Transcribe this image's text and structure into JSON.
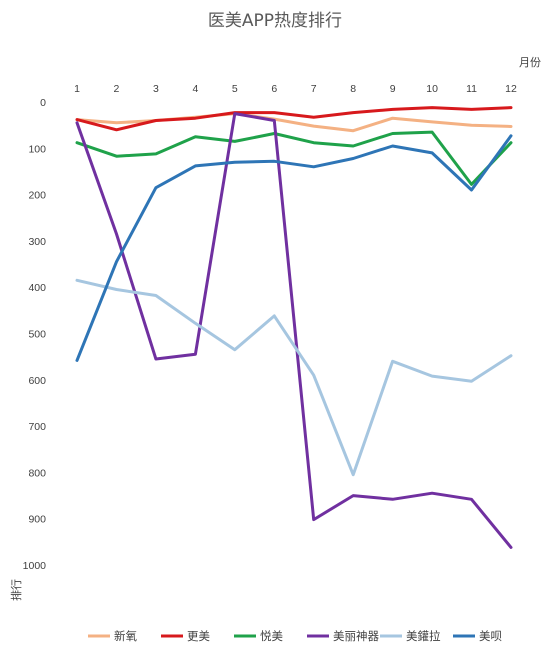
{
  "chart_data": {
    "type": "line",
    "title": "医美APP热度排行",
    "xlabel": "月份",
    "ylabel": "排行",
    "x": [
      1,
      2,
      3,
      4,
      5,
      6,
      7,
      8,
      9,
      10,
      11,
      12
    ],
    "x_axis_position": "top",
    "y_inverted": true,
    "ylim": [
      0,
      1000
    ],
    "yticks": [
      0,
      100,
      200,
      300,
      400,
      500,
      600,
      700,
      800,
      900,
      1000
    ],
    "grid": false,
    "legend_position": "bottom",
    "series": [
      {
        "name": "新氧",
        "color": "#F4B183",
        "values": [
          38,
          45,
          40,
          33,
          25,
          37,
          52,
          62,
          35,
          43,
          50,
          53
        ]
      },
      {
        "name": "更美",
        "color": "#D7191C",
        "values": [
          38,
          60,
          40,
          35,
          23,
          23,
          33,
          23,
          16,
          12,
          16,
          12
        ]
      },
      {
        "name": "悦美",
        "color": "#1FA24A",
        "values": [
          88,
          117,
          112,
          75,
          85,
          68,
          88,
          95,
          68,
          65,
          178,
          88
        ]
      },
      {
        "name": "美丽神器",
        "color": "#7030A0",
        "values": [
          45,
          285,
          555,
          545,
          25,
          40,
          902,
          850,
          858,
          845,
          858,
          962
        ]
      },
      {
        "name": "美鑵拉",
        "color": "#A6C6E0",
        "values": [
          385,
          405,
          418,
          478,
          535,
          462,
          590,
          805,
          560,
          592,
          603,
          548
        ]
      },
      {
        "name": "美呗",
        "color": "#2E75B6",
        "values": [
          558,
          345,
          185,
          138,
          130,
          128,
          140,
          122,
          95,
          110,
          190,
          73
        ]
      }
    ]
  }
}
